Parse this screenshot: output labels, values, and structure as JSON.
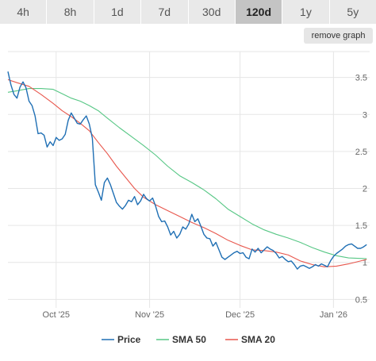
{
  "tabs": [
    {
      "label": "4h",
      "active": false
    },
    {
      "label": "8h",
      "active": false
    },
    {
      "label": "1d",
      "active": false
    },
    {
      "label": "7d",
      "active": false
    },
    {
      "label": "30d",
      "active": false
    },
    {
      "label": "120d",
      "active": true
    },
    {
      "label": "1y",
      "active": false
    },
    {
      "label": "5y",
      "active": false
    }
  ],
  "remove_graph_label": "remove graph",
  "chart_data": {
    "type": "line",
    "x_unit": "date",
    "x_start": "2025-09-15",
    "x_end": "2026-01-13",
    "x_ticks": [
      {
        "date": "2025-10-01",
        "label": "Oct '25"
      },
      {
        "date": "2025-11-01",
        "label": "Nov '25"
      },
      {
        "date": "2025-12-01",
        "label": "Dec '25"
      },
      {
        "date": "2026-01-01",
        "label": "Jan '26"
      }
    ],
    "y_ticks": [
      0.5,
      1,
      1.5,
      2,
      2.5,
      3,
      3.5
    ],
    "y_tick_labels": [
      "0.5",
      "1",
      "1.5",
      "2",
      "2.5",
      "3",
      "3.5"
    ],
    "ylim": [
      0.45,
      3.85
    ],
    "grid": true,
    "legend_position": "bottom",
    "series": [
      {
        "name": "Price",
        "color": "#1f6fb4",
        "points": [
          [
            "2025-09-15",
            3.58
          ],
          [
            "2025-09-16",
            3.4
          ],
          [
            "2025-09-17",
            3.27
          ],
          [
            "2025-09-18",
            3.22
          ],
          [
            "2025-09-19",
            3.37
          ],
          [
            "2025-09-20",
            3.44
          ],
          [
            "2025-09-21",
            3.36
          ],
          [
            "2025-09-22",
            3.18
          ],
          [
            "2025-09-23",
            3.12
          ],
          [
            "2025-09-24",
            2.98
          ],
          [
            "2025-09-25",
            2.74
          ],
          [
            "2025-09-26",
            2.75
          ],
          [
            "2025-09-27",
            2.72
          ],
          [
            "2025-09-28",
            2.56
          ],
          [
            "2025-09-29",
            2.63
          ],
          [
            "2025-09-30",
            2.58
          ],
          [
            "2025-10-01",
            2.69
          ],
          [
            "2025-10-02",
            2.65
          ],
          [
            "2025-10-03",
            2.67
          ],
          [
            "2025-10-04",
            2.73
          ],
          [
            "2025-10-05",
            2.92
          ],
          [
            "2025-10-06",
            3.02
          ],
          [
            "2025-10-07",
            2.95
          ],
          [
            "2025-10-08",
            2.88
          ],
          [
            "2025-10-09",
            2.87
          ],
          [
            "2025-10-10",
            2.93
          ],
          [
            "2025-10-11",
            2.98
          ],
          [
            "2025-10-12",
            2.87
          ],
          [
            "2025-10-13",
            2.68
          ],
          [
            "2025-10-14",
            2.05
          ],
          [
            "2025-10-15",
            1.95
          ],
          [
            "2025-10-16",
            1.84
          ],
          [
            "2025-10-17",
            2.08
          ],
          [
            "2025-10-18",
            2.14
          ],
          [
            "2025-10-19",
            2.05
          ],
          [
            "2025-10-20",
            1.93
          ],
          [
            "2025-10-21",
            1.81
          ],
          [
            "2025-10-22",
            1.76
          ],
          [
            "2025-10-23",
            1.72
          ],
          [
            "2025-10-24",
            1.77
          ],
          [
            "2025-10-25",
            1.84
          ],
          [
            "2025-10-26",
            1.82
          ],
          [
            "2025-10-27",
            1.89
          ],
          [
            "2025-10-28",
            1.78
          ],
          [
            "2025-10-29",
            1.83
          ],
          [
            "2025-10-30",
            1.92
          ],
          [
            "2025-10-31",
            1.86
          ],
          [
            "2025-11-01",
            1.83
          ],
          [
            "2025-11-02",
            1.87
          ],
          [
            "2025-11-03",
            1.76
          ],
          [
            "2025-11-04",
            1.62
          ],
          [
            "2025-11-05",
            1.55
          ],
          [
            "2025-11-06",
            1.56
          ],
          [
            "2025-11-07",
            1.48
          ],
          [
            "2025-11-08",
            1.37
          ],
          [
            "2025-11-09",
            1.42
          ],
          [
            "2025-11-10",
            1.33
          ],
          [
            "2025-11-11",
            1.38
          ],
          [
            "2025-11-12",
            1.48
          ],
          [
            "2025-11-13",
            1.45
          ],
          [
            "2025-11-14",
            1.52
          ],
          [
            "2025-11-15",
            1.65
          ],
          [
            "2025-11-16",
            1.55
          ],
          [
            "2025-11-17",
            1.59
          ],
          [
            "2025-11-18",
            1.49
          ],
          [
            "2025-11-19",
            1.38
          ],
          [
            "2025-11-20",
            1.33
          ],
          [
            "2025-11-21",
            1.32
          ],
          [
            "2025-11-22",
            1.22
          ],
          [
            "2025-11-23",
            1.27
          ],
          [
            "2025-11-24",
            1.17
          ],
          [
            "2025-11-25",
            1.07
          ],
          [
            "2025-11-26",
            1.04
          ],
          [
            "2025-11-27",
            1.07
          ],
          [
            "2025-11-28",
            1.1
          ],
          [
            "2025-11-29",
            1.13
          ],
          [
            "2025-11-30",
            1.15
          ],
          [
            "2025-12-01",
            1.12
          ],
          [
            "2025-12-02",
            1.13
          ],
          [
            "2025-12-03",
            1.07
          ],
          [
            "2025-12-04",
            1.05
          ],
          [
            "2025-12-05",
            1.18
          ],
          [
            "2025-12-06",
            1.14
          ],
          [
            "2025-12-07",
            1.19
          ],
          [
            "2025-12-08",
            1.13
          ],
          [
            "2025-12-09",
            1.17
          ],
          [
            "2025-12-10",
            1.21
          ],
          [
            "2025-12-11",
            1.18
          ],
          [
            "2025-12-12",
            1.16
          ],
          [
            "2025-12-13",
            1.12
          ],
          [
            "2025-12-14",
            1.06
          ],
          [
            "2025-12-15",
            1.08
          ],
          [
            "2025-12-16",
            1.04
          ],
          [
            "2025-12-17",
            1.01
          ],
          [
            "2025-12-18",
            1.02
          ],
          [
            "2025-12-19",
            0.97
          ],
          [
            "2025-12-20",
            0.91
          ],
          [
            "2025-12-21",
            0.95
          ],
          [
            "2025-12-22",
            0.96
          ],
          [
            "2025-12-23",
            0.94
          ],
          [
            "2025-12-24",
            0.92
          ],
          [
            "2025-12-25",
            0.94
          ],
          [
            "2025-12-26",
            0.97
          ],
          [
            "2025-12-27",
            0.95
          ],
          [
            "2025-12-28",
            0.98
          ],
          [
            "2025-12-29",
            0.96
          ],
          [
            "2025-12-30",
            0.94
          ],
          [
            "2025-12-31",
            1.02
          ],
          [
            "2026-01-01",
            1.08
          ],
          [
            "2026-01-02",
            1.12
          ],
          [
            "2026-01-03",
            1.15
          ],
          [
            "2026-01-04",
            1.18
          ],
          [
            "2026-01-05",
            1.22
          ],
          [
            "2026-01-06",
            1.24
          ],
          [
            "2026-01-07",
            1.25
          ],
          [
            "2026-01-08",
            1.22
          ],
          [
            "2026-01-09",
            1.19
          ],
          [
            "2026-01-10",
            1.19
          ],
          [
            "2026-01-11",
            1.21
          ],
          [
            "2026-01-12",
            1.24
          ]
        ]
      },
      {
        "name": "SMA 50",
        "color": "#57c785",
        "points": [
          [
            "2025-09-15",
            3.3
          ],
          [
            "2025-09-18",
            3.32
          ],
          [
            "2025-09-22",
            3.35
          ],
          [
            "2025-09-26",
            3.35
          ],
          [
            "2025-09-30",
            3.34
          ],
          [
            "2025-10-03",
            3.28
          ],
          [
            "2025-10-06",
            3.22
          ],
          [
            "2025-10-09",
            3.18
          ],
          [
            "2025-10-12",
            3.12
          ],
          [
            "2025-10-15",
            3.05
          ],
          [
            "2025-10-18",
            2.95
          ],
          [
            "2025-10-22",
            2.82
          ],
          [
            "2025-10-26",
            2.7
          ],
          [
            "2025-10-30",
            2.58
          ],
          [
            "2025-11-03",
            2.45
          ],
          [
            "2025-11-07",
            2.3
          ],
          [
            "2025-11-11",
            2.17
          ],
          [
            "2025-11-15",
            2.08
          ],
          [
            "2025-11-19",
            1.98
          ],
          [
            "2025-11-23",
            1.86
          ],
          [
            "2025-11-27",
            1.72
          ],
          [
            "2025-12-01",
            1.62
          ],
          [
            "2025-12-05",
            1.52
          ],
          [
            "2025-12-09",
            1.44
          ],
          [
            "2025-12-13",
            1.38
          ],
          [
            "2025-12-17",
            1.33
          ],
          [
            "2025-12-21",
            1.27
          ],
          [
            "2025-12-25",
            1.2
          ],
          [
            "2025-12-29",
            1.14
          ],
          [
            "2026-01-02",
            1.09
          ],
          [
            "2026-01-06",
            1.06
          ],
          [
            "2026-01-12",
            1.05
          ]
        ]
      },
      {
        "name": "SMA 20",
        "color": "#e8574d",
        "points": [
          [
            "2025-09-15",
            3.47
          ],
          [
            "2025-09-18",
            3.43
          ],
          [
            "2025-09-22",
            3.38
          ],
          [
            "2025-09-26",
            3.27
          ],
          [
            "2025-09-30",
            3.15
          ],
          [
            "2025-10-03",
            3.05
          ],
          [
            "2025-10-06",
            2.97
          ],
          [
            "2025-10-09",
            2.88
          ],
          [
            "2025-10-12",
            2.78
          ],
          [
            "2025-10-15",
            2.62
          ],
          [
            "2025-10-18",
            2.47
          ],
          [
            "2025-10-21",
            2.3
          ],
          [
            "2025-10-24",
            2.15
          ],
          [
            "2025-10-27",
            2.0
          ],
          [
            "2025-10-30",
            1.88
          ],
          [
            "2025-11-03",
            1.78
          ],
          [
            "2025-11-07",
            1.7
          ],
          [
            "2025-11-11",
            1.62
          ],
          [
            "2025-11-15",
            1.54
          ],
          [
            "2025-11-19",
            1.47
          ],
          [
            "2025-11-23",
            1.39
          ],
          [
            "2025-11-27",
            1.3
          ],
          [
            "2025-12-01",
            1.23
          ],
          [
            "2025-12-05",
            1.17
          ],
          [
            "2025-12-09",
            1.16
          ],
          [
            "2025-12-13",
            1.14
          ],
          [
            "2025-12-17",
            1.1
          ],
          [
            "2025-12-21",
            1.02
          ],
          [
            "2025-12-25",
            0.97
          ],
          [
            "2025-12-29",
            0.94
          ],
          [
            "2026-01-02",
            0.95
          ],
          [
            "2026-01-06",
            0.98
          ],
          [
            "2026-01-12",
            1.04
          ]
        ]
      }
    ]
  }
}
